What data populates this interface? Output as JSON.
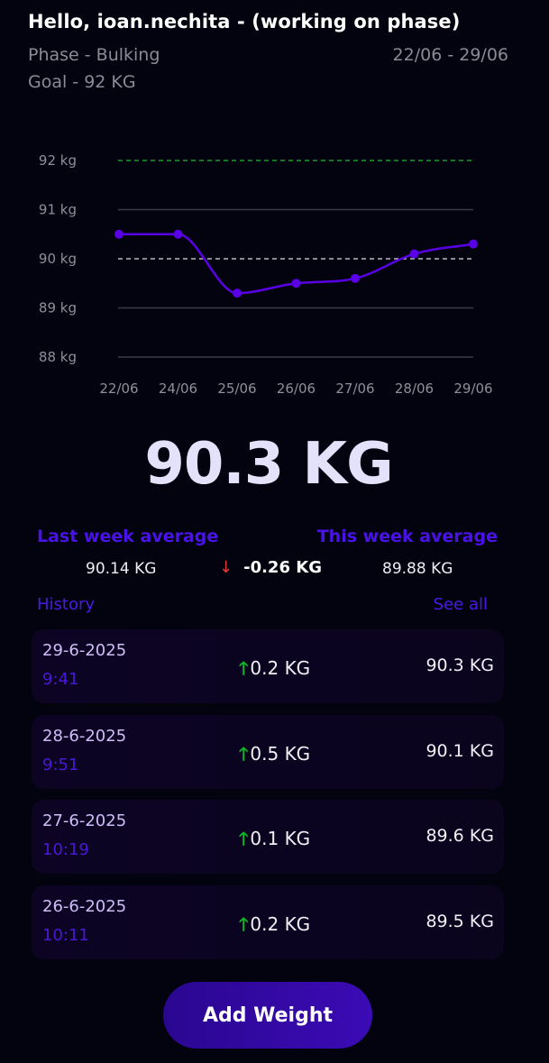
{
  "header": {
    "greeting": "Hello, ioan.nechita - (working on phase)",
    "phase": "Phase - Bulking",
    "date_range": "22/06 - 29/06",
    "goal": "Goal - 92 KG"
  },
  "chart_data": {
    "type": "line",
    "x": [
      "22/06",
      "24/06",
      "25/06",
      "26/06",
      "27/06",
      "28/06",
      "29/06"
    ],
    "series": [
      {
        "values": [
          90.5,
          90.5,
          89.3,
          89.5,
          89.6,
          90.1,
          90.3
        ]
      }
    ],
    "yticks": [
      "92 kg",
      "91 kg",
      "90 kg",
      "89 kg",
      "88 kg"
    ],
    "ylim": [
      88,
      92
    ],
    "goal_line": 92,
    "average_line": 90,
    "grid": true,
    "colors": {
      "line": "#5a00e6",
      "goal": "#1f9a2f",
      "average": "#b9b9c6",
      "grid": "#3a3a48"
    }
  },
  "current_weight": "90.3 KG",
  "averages": {
    "last_label": "Last week average",
    "this_label": "This week average",
    "last_value": "90.14 KG",
    "this_value": "89.88 KG",
    "diff_arrow": "↓",
    "diff_value": "-0.26 KG"
  },
  "history": {
    "title": "History",
    "see_all": "See all",
    "entries": [
      {
        "date": "29-6-2025",
        "time": "9:41",
        "arrow": "🡑",
        "change": "0.2 KG",
        "weight": "90.3 KG"
      },
      {
        "date": "28-6-2025",
        "time": "9:51",
        "arrow": "🡑",
        "change": "0.5 KG",
        "weight": "90.1 KG"
      },
      {
        "date": "27-6-2025",
        "time": "10:19",
        "arrow": "🡑",
        "change": "0.1 KG",
        "weight": "89.6 KG"
      },
      {
        "date": "26-6-2025",
        "time": "10:11",
        "arrow": "🡑",
        "change": "0.2 KG",
        "weight": "89.5 KG"
      }
    ]
  },
  "add_button": "Add Weight"
}
